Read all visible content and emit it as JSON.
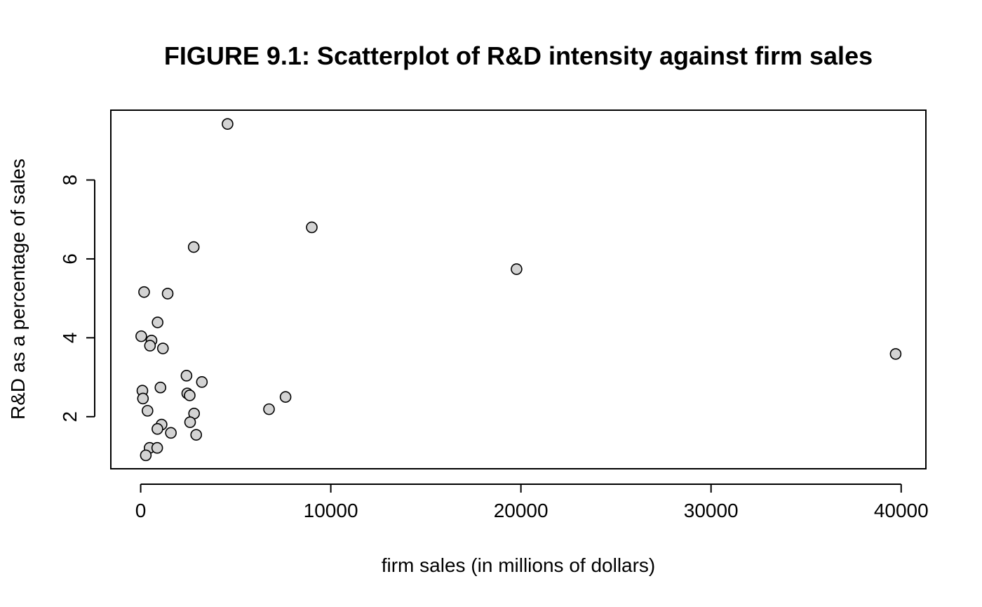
{
  "chart_data": {
    "type": "scatter",
    "title": "FIGURE 9.1: Scatterplot of R&D intensity against firm sales",
    "xlabel": "firm sales (in millions of dollars)",
    "ylabel": "R&D as a percentage of sales",
    "xlim": [
      -1570,
      41300
    ],
    "ylim": [
      0.68,
      9.77
    ],
    "x_ticks": [
      0,
      10000,
      20000,
      30000,
      40000
    ],
    "x_tick_labels": [
      "0",
      "10000",
      "20000",
      "30000",
      "40000"
    ],
    "y_ticks": [
      2,
      4,
      6,
      8
    ],
    "y_tick_labels": [
      "2",
      "4",
      "6",
      "8"
    ],
    "grid": false,
    "point_fill": "#d3d3d3",
    "point_stroke": "#000000",
    "points": [
      {
        "x": 4570,
        "y": 9.42
      },
      {
        "x": 9000,
        "y": 6.8
      },
      {
        "x": 2790,
        "y": 6.3
      },
      {
        "x": 19770,
        "y": 5.74
      },
      {
        "x": 180,
        "y": 5.16
      },
      {
        "x": 1420,
        "y": 5.12
      },
      {
        "x": 890,
        "y": 4.39
      },
      {
        "x": 30,
        "y": 4.04
      },
      {
        "x": 570,
        "y": 3.93
      },
      {
        "x": 490,
        "y": 3.8
      },
      {
        "x": 1170,
        "y": 3.73
      },
      {
        "x": 39710,
        "y": 3.59
      },
      {
        "x": 2410,
        "y": 3.04
      },
      {
        "x": 3220,
        "y": 2.88
      },
      {
        "x": 1040,
        "y": 2.74
      },
      {
        "x": 90,
        "y": 2.66
      },
      {
        "x": 2450,
        "y": 2.59
      },
      {
        "x": 2580,
        "y": 2.54
      },
      {
        "x": 7620,
        "y": 2.5
      },
      {
        "x": 120,
        "y": 2.46
      },
      {
        "x": 6750,
        "y": 2.19
      },
      {
        "x": 360,
        "y": 2.15
      },
      {
        "x": 2810,
        "y": 2.08
      },
      {
        "x": 2600,
        "y": 1.86
      },
      {
        "x": 1100,
        "y": 1.8
      },
      {
        "x": 880,
        "y": 1.69
      },
      {
        "x": 1590,
        "y": 1.59
      },
      {
        "x": 2920,
        "y": 1.54
      },
      {
        "x": 470,
        "y": 1.21
      },
      {
        "x": 870,
        "y": 1.21
      },
      {
        "x": 270,
        "y": 1.02
      }
    ]
  }
}
